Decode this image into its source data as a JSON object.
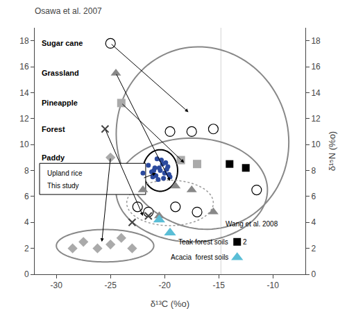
{
  "chart_data": {
    "type": "scatter",
    "title": "Osawa et al. 2007",
    "xlabel": "δ¹³C (%o)",
    "y2label": "δ¹⁵N (%o)",
    "xlim": [
      -32,
      -7
    ],
    "ylim": [
      0,
      19
    ],
    "y2lim": [
      0,
      19
    ],
    "xticks": [
      -30,
      -25,
      -20,
      -15,
      -10
    ],
    "yticks": [
      0,
      2,
      4,
      6,
      8,
      10,
      12,
      14,
      16,
      18
    ],
    "y2ticks": [
      0,
      2,
      4,
      6,
      8,
      10,
      12,
      14,
      16,
      18
    ],
    "grid": false,
    "series": [
      {
        "name": "Sugar cane",
        "marker": "circle-open",
        "color": "black",
        "points": [
          [
            -19.5,
            11.0
          ],
          [
            -17.5,
            11.0
          ],
          [
            -15.5,
            11.2
          ],
          [
            -19.0,
            5.2
          ],
          [
            -17.0,
            4.8
          ],
          [
            -21.5,
            4.8
          ],
          [
            -22.5,
            5.2
          ],
          [
            -11.5,
            6.5
          ]
        ],
        "key": [
          -25.0,
          17.8
        ]
      },
      {
        "name": "Grassland",
        "marker": "triangle-up",
        "color": "#888888",
        "points": [
          [
            -19.0,
            6.8
          ],
          [
            -17.5,
            6.5
          ],
          [
            -15.5,
            4.8
          ],
          [
            -20.5,
            4.5
          ],
          [
            -22.0,
            6.5
          ]
        ],
        "key": [
          -24.5,
          15.5
        ]
      },
      {
        "name": "Pineapple",
        "marker": "square",
        "color": "#aaaaaa",
        "points": [
          [
            -18.5,
            8.8
          ],
          [
            -17.0,
            8.5
          ]
        ],
        "key": [
          -24.0,
          13.2
        ]
      },
      {
        "name": "Forest",
        "marker": "x",
        "color": "#444444",
        "points": [
          [
            -21.5,
            4.5
          ],
          [
            -23.0,
            4.0
          ]
        ],
        "key": [
          -25.5,
          11.2
        ]
      },
      {
        "name": "Paddy",
        "marker": "diamond",
        "color": "#aaaaaa",
        "points": [
          [
            -27.5,
            2.5
          ],
          [
            -26.2,
            2.0
          ],
          [
            -25.0,
            2.3
          ],
          [
            -24.0,
            2.8
          ],
          [
            -23.0,
            2.0
          ],
          [
            -28.5,
            2.0
          ]
        ],
        "key": [
          -25.0,
          9.0
        ]
      },
      {
        "name": "Teak forest soils",
        "marker": "square",
        "color": "black",
        "points": [
          [
            -14.0,
            8.5
          ],
          [
            -12.5,
            8.2
          ]
        ],
        "key": [
          -13.3,
          2.5
        ],
        "note": "2"
      },
      {
        "name": "Acacia  forest soils",
        "marker": "triangle-up",
        "color": "#5ABED6",
        "points": [
          [
            -20.5,
            4.2
          ],
          [
            -19.5,
            3.2
          ]
        ],
        "key": [
          -13.3,
          1.3
        ]
      },
      {
        "name": "Upland rice",
        "marker": "circle",
        "color": "#2B4A9E",
        "points": [
          [
            -20.5,
            8.2
          ],
          [
            -20.2,
            8.5
          ],
          [
            -19.8,
            8.1
          ],
          [
            -20.0,
            7.8
          ],
          [
            -19.5,
            7.5
          ],
          [
            -20.8,
            7.6
          ],
          [
            -21.0,
            8.0
          ],
          [
            -20.3,
            8.8
          ],
          [
            -19.7,
            8.3
          ],
          [
            -20.6,
            7.3
          ],
          [
            -21.2,
            7.9
          ],
          [
            -19.9,
            8.6
          ],
          [
            -20.7,
            8.9
          ],
          [
            -20.1,
            7.4
          ],
          [
            -21.5,
            8.4
          ],
          [
            -20.4,
            8.0
          ],
          [
            -19.6,
            7.7
          ],
          [
            -20.9,
            8.2
          ],
          [
            -21.1,
            7.5
          ]
        ],
        "key": [
          -22.0,
          7.8
        ],
        "note": "This study"
      }
    ],
    "ellipses": [
      {
        "center": [
          -16.5,
          10.5
        ],
        "width": 16,
        "height": 14,
        "angle": -10,
        "color": "#888888"
      },
      {
        "center": [
          -17.5,
          6.5
        ],
        "width": 14,
        "height": 8,
        "angle": 0,
        "color": "#888888"
      },
      {
        "center": [
          -25.5,
          2.2
        ],
        "width": 9,
        "height": 2.5,
        "angle": 0,
        "color": "#888888"
      },
      {
        "center": [
          -20.4,
          8.0
        ],
        "width": 3.2,
        "height": 3.2,
        "color": "black"
      },
      {
        "center": [
          -19.5,
          5.5
        ],
        "width": 8,
        "height": 3.5,
        "angle": 0,
        "color": "#999999",
        "line_style": "dotted"
      }
    ],
    "vline": {
      "x": -14.8,
      "color": "lightgray"
    },
    "annotations": [
      {
        "text": "Wang et al. 2008"
      }
    ]
  }
}
